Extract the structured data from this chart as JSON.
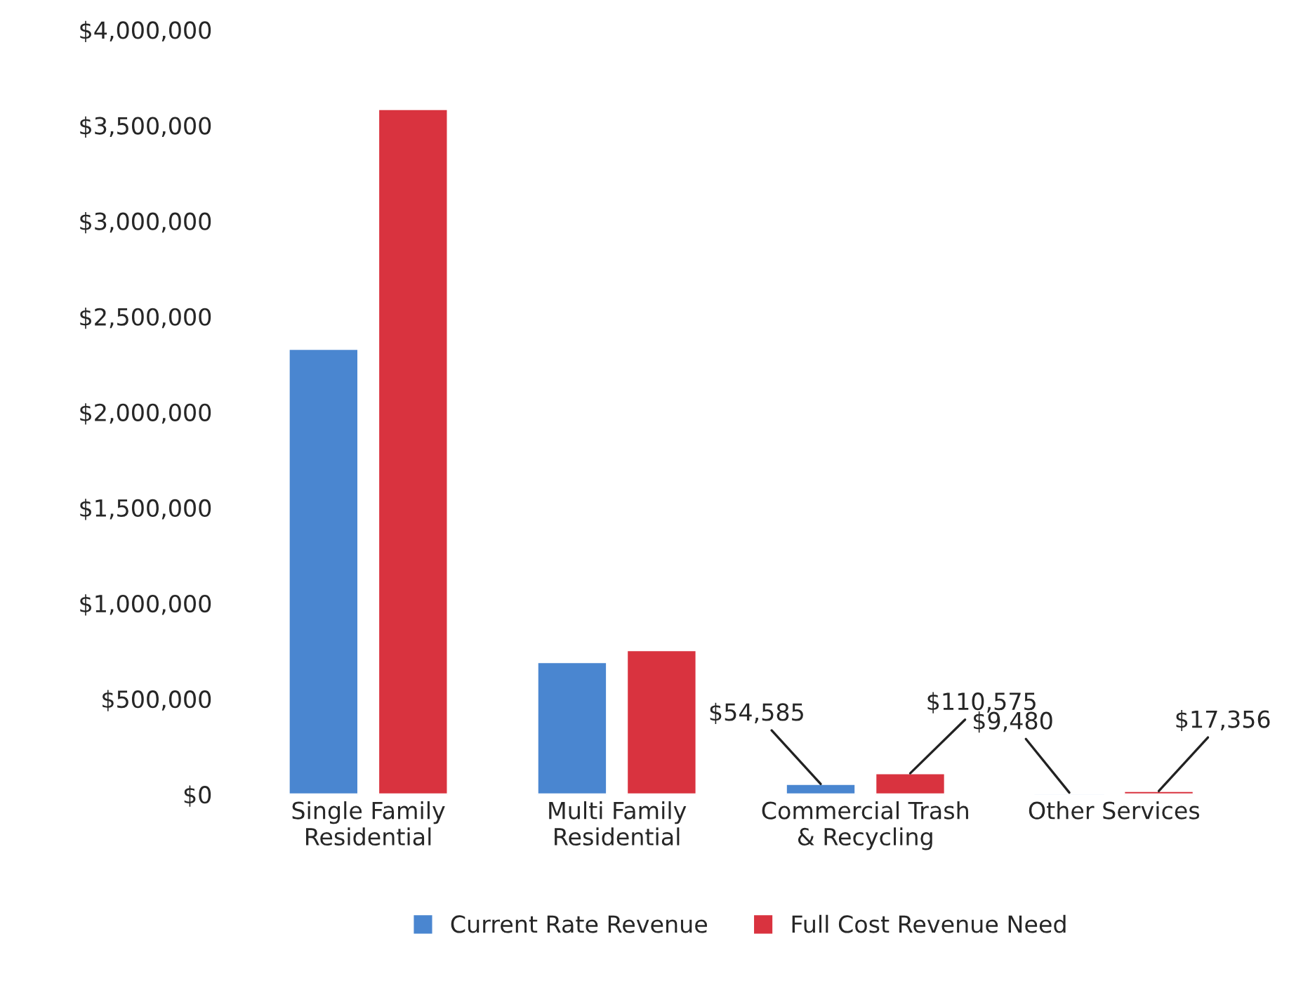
{
  "chart_data": {
    "type": "bar",
    "categories": [
      "Single Family\nResidential",
      "Multi Family\nResidential",
      "Commercial Trash\n& Recycling",
      "Other Services"
    ],
    "series": [
      {
        "name": "Current Rate Revenue",
        "color": "#4a86d0",
        "values": [
          2330000,
          692000,
          54585,
          9480
        ],
        "value_labels": [
          null,
          null,
          "$54,585",
          "$9,480"
        ]
      },
      {
        "name": "Full Cost Revenue Need",
        "color": "#d9333f",
        "values": [
          3585000,
          754000,
          110575,
          17356
        ],
        "value_labels": [
          null,
          null,
          "$110,575",
          "$17,356"
        ]
      }
    ],
    "ylim": [
      0,
      4000000
    ],
    "yticks": [
      {
        "value": 0,
        "label": "$0"
      },
      {
        "value": 500000,
        "label": "$500,000"
      },
      {
        "value": 1000000,
        "label": "$1,000,000"
      },
      {
        "value": 1500000,
        "label": "$1,500,000"
      },
      {
        "value": 2000000,
        "label": "$2,000,000"
      },
      {
        "value": 2500000,
        "label": "$2,500,000"
      },
      {
        "value": 3000000,
        "label": "$3,000,000"
      },
      {
        "value": 3500000,
        "label": "$3,500,000"
      },
      {
        "value": 4000000,
        "label": "$4,000,000"
      }
    ],
    "grid": false,
    "legend": "bottom"
  }
}
